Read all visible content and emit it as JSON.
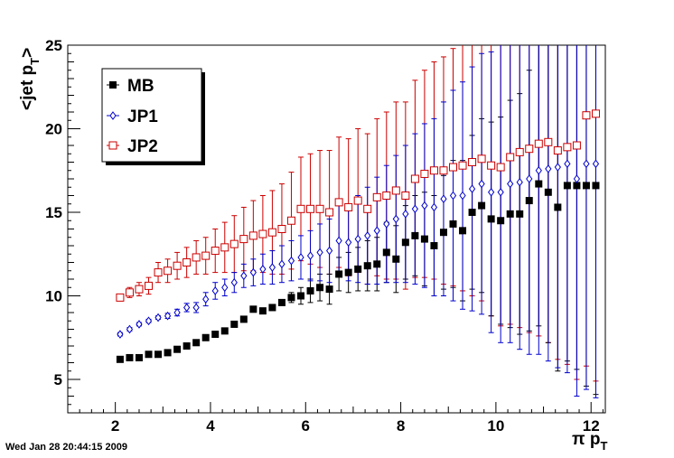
{
  "chart_data": {
    "type": "scatter",
    "ylabel_main": "<jet p",
    "ylabel_sub": "T",
    "ylabel_close": ">",
    "xlabel_main": "π p",
    "xlabel_sub": "T",
    "xlim": [
      1,
      12.3
    ],
    "ylim": [
      3,
      25
    ],
    "xticks": [
      2,
      4,
      6,
      8,
      10,
      12
    ],
    "yticks": [
      5,
      10,
      15,
      20,
      25
    ],
    "grid": false,
    "legend_position": "top-left",
    "series": [
      {
        "name": "MB",
        "color": "#000000",
        "marker": "filled-square",
        "x": [
          2.1,
          2.3,
          2.5,
          2.7,
          2.9,
          3.1,
          3.3,
          3.5,
          3.7,
          3.9,
          4.1,
          4.3,
          4.5,
          4.7,
          4.9,
          5.1,
          5.3,
          5.5,
          5.7,
          5.9,
          6.1,
          6.3,
          6.5,
          6.7,
          6.9,
          7.1,
          7.3,
          7.5,
          7.7,
          7.9,
          8.1,
          8.3,
          8.5,
          8.7,
          8.9,
          9.1,
          9.3,
          9.5,
          9.7,
          9.9,
          10.1,
          10.3,
          10.5,
          10.7,
          10.9,
          11.1,
          11.3,
          11.5,
          11.7,
          11.9,
          12.1
        ],
        "y": [
          6.2,
          6.3,
          6.3,
          6.5,
          6.5,
          6.6,
          6.8,
          7.0,
          7.2,
          7.5,
          7.7,
          7.9,
          8.3,
          8.6,
          9.2,
          9.1,
          9.3,
          9.6,
          9.9,
          10.0,
          10.3,
          10.5,
          10.4,
          11.3,
          11.4,
          11.6,
          11.8,
          11.9,
          12.6,
          12.2,
          13.2,
          13.6,
          13.4,
          13.0,
          13.8,
          14.3,
          13.9,
          15.0,
          15.4,
          14.6,
          14.5,
          14.9,
          14.9,
          15.7,
          16.7,
          16.2,
          15.3,
          16.6,
          16.6,
          16.6,
          16.6
        ],
        "err": [
          0,
          0,
          0,
          0,
          0,
          0,
          0,
          0,
          0,
          0,
          0,
          0,
          0,
          0,
          0,
          0,
          0,
          0,
          0.3,
          0.5,
          0.7,
          0.8,
          0.9,
          1.0,
          1.2,
          1.3,
          1.5,
          1.6,
          1.8,
          2.0,
          2.2,
          2.4,
          2.8,
          3.0,
          3.4,
          3.8,
          4.2,
          4.6,
          5.2,
          5.8,
          6.2,
          6.8,
          7.2,
          7.8,
          8.5,
          9.0,
          9.8,
          10.5,
          11.0,
          12.0,
          12.5
        ]
      },
      {
        "name": "JP1",
        "color": "#0000cc",
        "marker": "open-diamond",
        "x": [
          2.1,
          2.3,
          2.5,
          2.7,
          2.9,
          3.1,
          3.3,
          3.5,
          3.7,
          3.9,
          4.1,
          4.3,
          4.5,
          4.7,
          4.9,
          5.1,
          5.3,
          5.5,
          5.7,
          5.9,
          6.1,
          6.3,
          6.5,
          6.7,
          6.9,
          7.1,
          7.3,
          7.5,
          7.7,
          7.9,
          8.1,
          8.3,
          8.5,
          8.7,
          8.9,
          9.1,
          9.3,
          9.5,
          9.7,
          9.9,
          10.1,
          10.3,
          10.5,
          10.7,
          10.9,
          11.1,
          11.3,
          11.5,
          11.7,
          11.9,
          12.1
        ],
        "y": [
          7.7,
          8.0,
          8.3,
          8.5,
          8.7,
          8.8,
          9.0,
          9.3,
          9.3,
          9.8,
          10.3,
          10.5,
          10.8,
          11.2,
          11.4,
          11.6,
          11.7,
          11.9,
          12.1,
          12.3,
          12.4,
          12.6,
          12.7,
          13.3,
          13.2,
          13.4,
          13.6,
          13.9,
          14.3,
          14.6,
          14.9,
          15.2,
          15.4,
          15.3,
          15.8,
          16.0,
          16.0,
          16.4,
          16.7,
          16.2,
          16.2,
          16.7,
          16.8,
          17.0,
          17.5,
          17.6,
          17.7,
          17.9,
          17.0,
          17.9,
          17.9
        ],
        "err": [
          0.1,
          0.1,
          0.1,
          0.1,
          0.1,
          0.15,
          0.2,
          0.25,
          0.3,
          0.4,
          0.5,
          0.5,
          0.6,
          0.7,
          0.8,
          0.9,
          1.0,
          1.1,
          1.2,
          1.3,
          1.5,
          1.7,
          1.9,
          2.1,
          2.3,
          2.6,
          2.9,
          3.2,
          3.5,
          3.8,
          4.1,
          4.5,
          4.9,
          5.3,
          5.8,
          6.3,
          6.8,
          7.3,
          7.8,
          8.4,
          9.0,
          9.5,
          10.0,
          10.5,
          11.0,
          11.5,
          12.0,
          12.5,
          13.0,
          13.5,
          14.0
        ]
      },
      {
        "name": "JP2",
        "color": "#cc0000",
        "marker": "open-square",
        "x": [
          2.1,
          2.3,
          2.5,
          2.7,
          2.9,
          3.1,
          3.3,
          3.5,
          3.7,
          3.9,
          4.1,
          4.3,
          4.5,
          4.7,
          4.9,
          5.1,
          5.3,
          5.5,
          5.7,
          5.9,
          6.1,
          6.3,
          6.5,
          6.7,
          6.9,
          7.1,
          7.3,
          7.5,
          7.7,
          7.9,
          8.1,
          8.3,
          8.5,
          8.7,
          8.9,
          9.1,
          9.3,
          9.5,
          9.7,
          9.9,
          10.1,
          10.3,
          10.5,
          10.7,
          10.9,
          11.1,
          11.3,
          11.5,
          11.7,
          11.9,
          12.1
        ],
        "y": [
          9.9,
          10.2,
          10.4,
          10.6,
          11.4,
          11.5,
          11.8,
          12.0,
          12.3,
          12.4,
          12.7,
          12.9,
          13.1,
          13.4,
          13.6,
          13.7,
          13.8,
          14.0,
          14.5,
          15.2,
          15.2,
          15.2,
          15.0,
          15.6,
          15.3,
          15.7,
          15.2,
          15.9,
          16.0,
          16.3,
          16.0,
          17.0,
          17.3,
          17.5,
          17.5,
          17.7,
          17.8,
          18.0,
          18.2,
          17.8,
          17.7,
          18.3,
          18.6,
          18.8,
          19.1,
          19.2,
          18.7,
          18.9,
          19.0,
          20.8,
          20.9
        ],
        "err": [
          0.2,
          0.3,
          0.4,
          0.5,
          0.6,
          0.7,
          0.8,
          0.9,
          1.0,
          1.1,
          1.3,
          1.5,
          1.7,
          1.9,
          2.1,
          2.3,
          2.5,
          2.7,
          2.9,
          3.1,
          3.3,
          3.5,
          3.7,
          3.9,
          4.1,
          4.3,
          4.5,
          4.7,
          5.0,
          5.3,
          5.6,
          5.9,
          6.2,
          6.5,
          6.8,
          7.1,
          7.5,
          8.0,
          8.5,
          9.0,
          9.5,
          10.0,
          10.5,
          11.0,
          11.5,
          12.0,
          12.5,
          13.0,
          14.0,
          15.0,
          16.0
        ]
      }
    ]
  },
  "legend": {
    "items": [
      {
        "label": "MB"
      },
      {
        "label": "JP1"
      },
      {
        "label": "JP2"
      }
    ]
  },
  "footer": {
    "timestamp": "Wed Jan 28 20:44:15 2009"
  }
}
